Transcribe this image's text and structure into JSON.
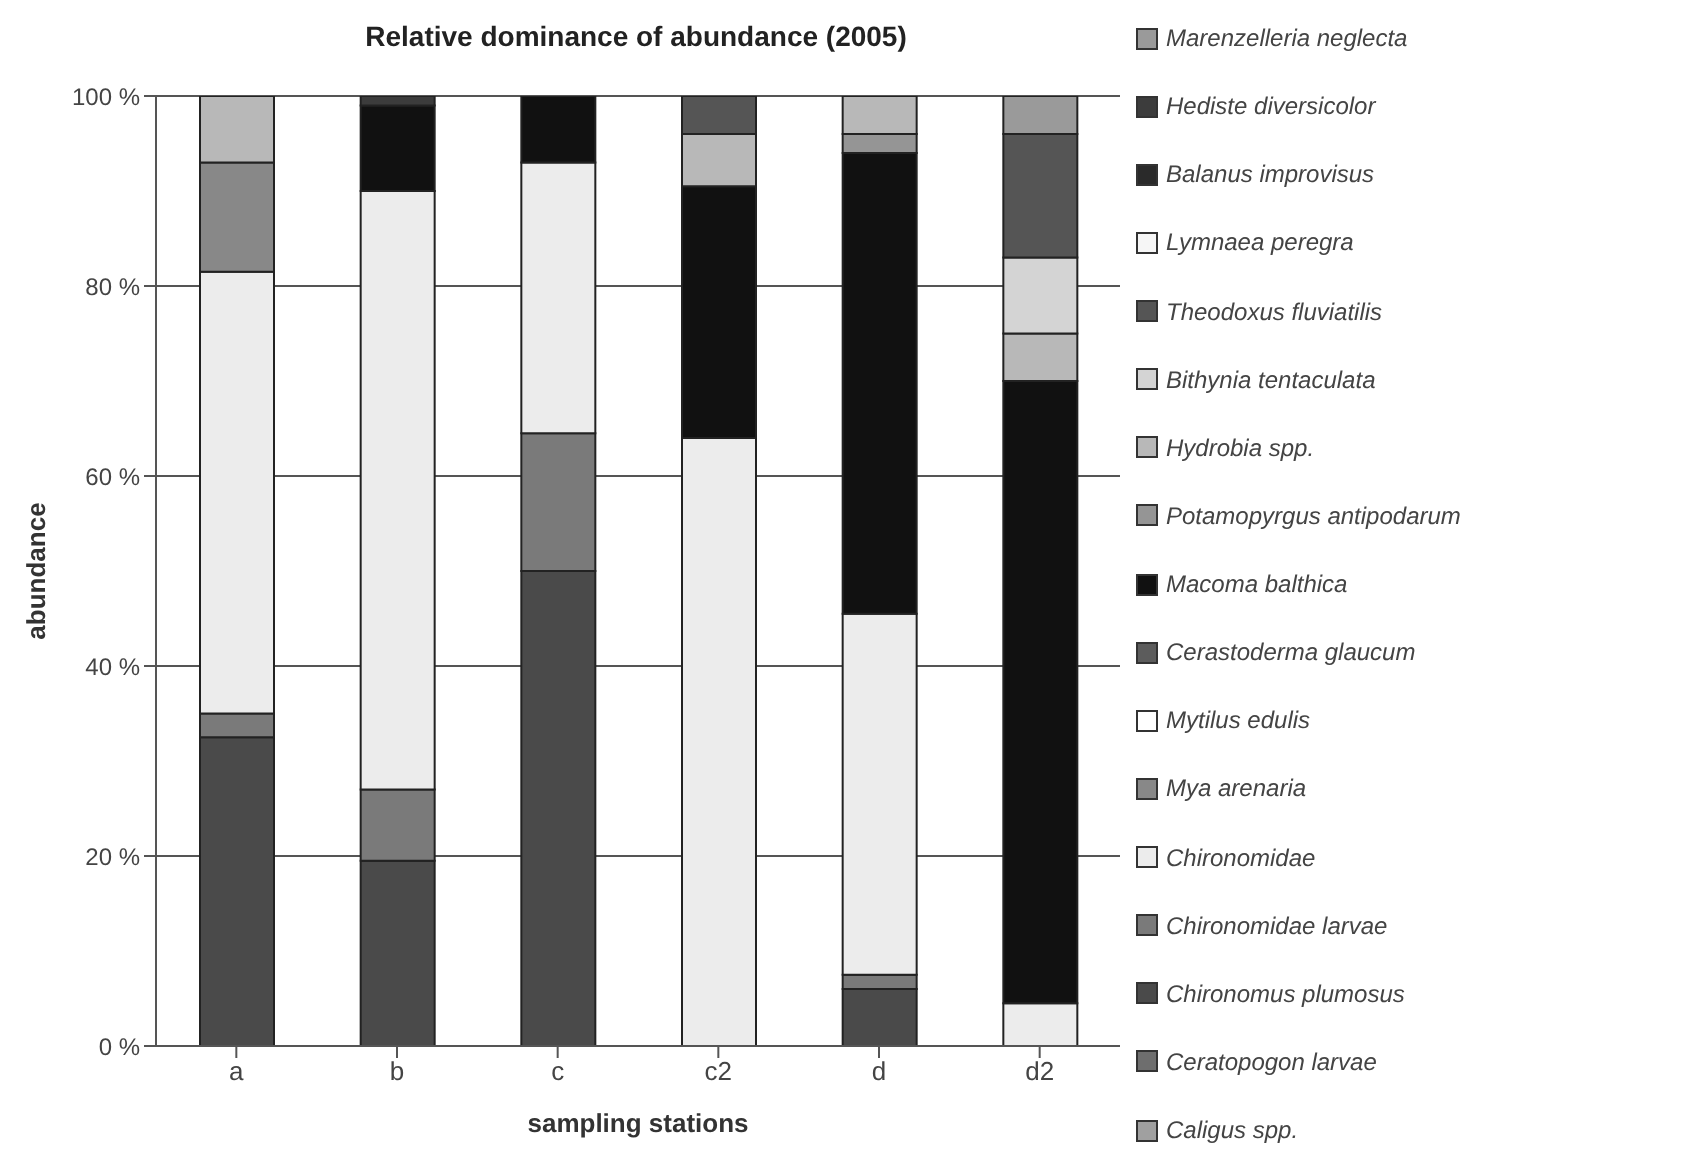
{
  "chart_data": {
    "type": "bar",
    "stacked": true,
    "title": "Relative dominance of abundance (2005)",
    "xlabel": "sampling stations",
    "ylabel": "abundance",
    "categories": [
      "a",
      "b",
      "c",
      "c2",
      "d",
      "d2"
    ],
    "ylim": [
      0,
      100
    ],
    "yticks": [
      {
        "value": 0,
        "label": "0 %"
      },
      {
        "value": 20,
        "label": "20 %"
      },
      {
        "value": 40,
        "label": "40 %"
      },
      {
        "value": 60,
        "label": "60 %"
      },
      {
        "value": 80,
        "label": "80 %"
      },
      {
        "value": 100,
        "label": "100 %"
      }
    ],
    "grid": "y",
    "legend": "right",
    "series": [
      {
        "name": "Caligus spp.",
        "color": "#a0a0a0",
        "values": [
          0,
          0,
          0,
          0,
          0,
          0
        ]
      },
      {
        "name": "Ceratopogon larvae",
        "color": "#6e6e6e",
        "values": [
          0,
          0,
          0,
          0,
          0,
          0
        ]
      },
      {
        "name": "Chironomus plumosus",
        "color": "#4a4a4a",
        "values": [
          32.5,
          19.5,
          50,
          0,
          6,
          0
        ]
      },
      {
        "name": "Chironomidae larvae",
        "color": "#7a7a7a",
        "values": [
          2.5,
          7.5,
          14.5,
          0,
          1.5,
          0
        ]
      },
      {
        "name": "Chironomidae",
        "color": "#ececec",
        "values": [
          46.5,
          63,
          28.5,
          64,
          38,
          4.5
        ]
      },
      {
        "name": "Mya arenaria",
        "color": "#888888",
        "values": [
          11.5,
          0,
          0,
          0,
          0,
          0
        ]
      },
      {
        "name": "Mytilus edulis",
        "color": "#ffffff",
        "values": [
          0,
          0,
          0,
          0,
          0,
          0
        ]
      },
      {
        "name": "Cerastoderma glaucum",
        "color": "#5c5c5c",
        "values": [
          0,
          0,
          0,
          0,
          0,
          0
        ]
      },
      {
        "name": "Macoma balthica",
        "color": "#111111",
        "values": [
          0,
          9,
          7,
          26.5,
          48.5,
          65.5
        ]
      },
      {
        "name": "Potamopyrgus antipodarum",
        "color": "#959595",
        "values": [
          0,
          0,
          0,
          0,
          2,
          0
        ]
      },
      {
        "name": "Hydrobia spp.",
        "color": "#b8b8b8",
        "values": [
          7,
          0,
          0,
          5.5,
          4,
          5
        ]
      },
      {
        "name": "Bithynia tentaculata",
        "color": "#d4d4d4",
        "values": [
          0,
          0,
          0,
          0,
          0,
          8
        ]
      },
      {
        "name": "Theodoxus fluviatilis",
        "color": "#555555",
        "values": [
          0,
          0,
          0,
          4,
          0,
          13
        ]
      },
      {
        "name": "Lymnaea peregra",
        "color": "#f6f6f6",
        "values": [
          0,
          0,
          0,
          0,
          0,
          0
        ]
      },
      {
        "name": "Balanus improvisus",
        "color": "#2a2a2a",
        "values": [
          0,
          0,
          0,
          0,
          0,
          0
        ]
      },
      {
        "name": "Hediste diversicolor",
        "color": "#3c3c3c",
        "values": [
          0,
          1,
          0,
          0,
          0,
          0
        ]
      },
      {
        "name": "Marenzelleria neglecta",
        "color": "#9a9a9a",
        "values": [
          0,
          0,
          0,
          0,
          0,
          4
        ]
      }
    ]
  }
}
